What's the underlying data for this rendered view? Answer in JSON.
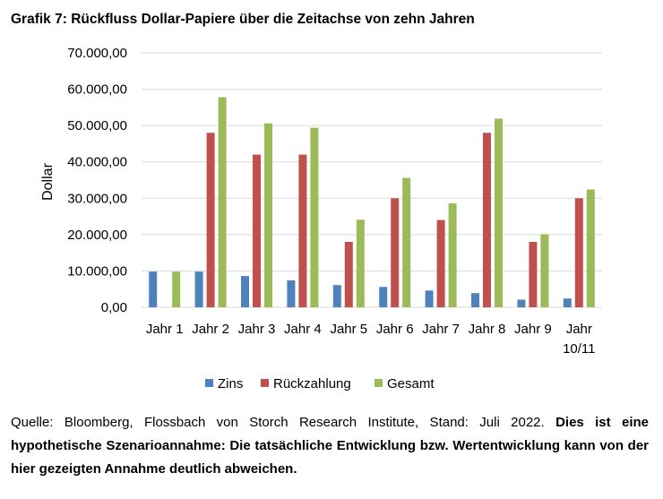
{
  "title": "Grafik 7: Rückfluss Dollar-Papiere über die Zeitachse von zehn Jahren",
  "source_text": "Quelle: Bloomberg, Flossbach von Storch Research Institute, Stand: Juli 2022.",
  "disclaimer_text": "Dies ist eine hypothetische Szenarioannahme: Die tatsächliche Entwicklung bzw. Wertentwicklung kann von der hier gezeigten Annahme deutlich abweichen.",
  "chart_data": {
    "type": "bar",
    "ylabel": "Dollar",
    "xlabel": "",
    "ylim": [
      0,
      70000
    ],
    "yticks": [
      0,
      10000,
      20000,
      30000,
      40000,
      50000,
      60000,
      70000
    ],
    "ytick_labels": [
      "0,00",
      "10.000,00",
      "20.000,00",
      "30.000,00",
      "40.000,00",
      "50.000,00",
      "60.000,00",
      "70.000,00"
    ],
    "grid": true,
    "legend_position": "bottom",
    "categories": [
      "Jahr 1",
      "Jahr 2",
      "Jahr 3",
      "Jahr 4",
      "Jahr 5",
      "Jahr 6",
      "Jahr 7",
      "Jahr 8",
      "Jahr 9",
      "Jahr 10/11"
    ],
    "category_lines": [
      [
        "Jahr 1"
      ],
      [
        "Jahr 2"
      ],
      [
        "Jahr 3"
      ],
      [
        "Jahr 4"
      ],
      [
        "Jahr 5"
      ],
      [
        "Jahr 6"
      ],
      [
        "Jahr 7"
      ],
      [
        "Jahr 8"
      ],
      [
        "Jahr 9"
      ],
      [
        "Jahr",
        "10/11"
      ]
    ],
    "series": [
      {
        "name": "Zins",
        "color": "#4f81bd",
        "values": [
          9800,
          9800,
          8600,
          7400,
          6100,
          5600,
          4600,
          3900,
          2100,
          2400
        ]
      },
      {
        "name": "Rückzahlung",
        "color": "#c0504d",
        "values": [
          0,
          48000,
          42000,
          42000,
          18000,
          30000,
          24000,
          48000,
          18000,
          30000
        ]
      },
      {
        "name": "Gesamt",
        "color": "#9bbb59",
        "values": [
          9800,
          57800,
          50600,
          49400,
          24100,
          35600,
          28600,
          51900,
          20100,
          32400
        ]
      }
    ]
  }
}
